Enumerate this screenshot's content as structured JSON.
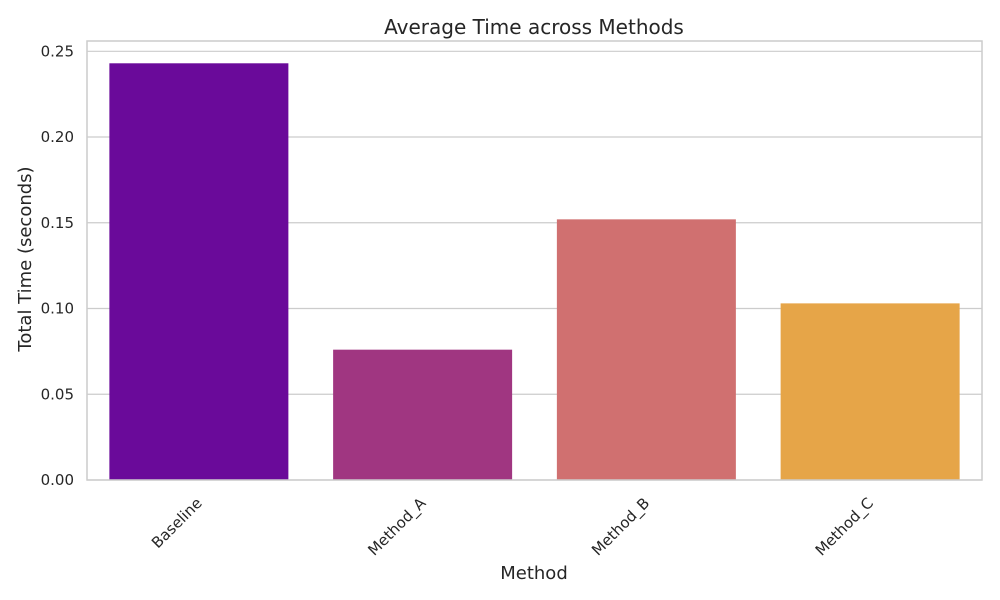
{
  "chart_data": {
    "type": "bar",
    "title": "Average Time across Methods",
    "xlabel": "Method",
    "ylabel": "Total Time (seconds)",
    "categories": [
      "Baseline",
      "Method_A",
      "Method_B",
      "Method_C"
    ],
    "values": [
      0.243,
      0.076,
      0.152,
      0.103
    ],
    "colors": [
      "#6a0a9a",
      "#a03681",
      "#d07070",
      "#e6a548"
    ],
    "ylim": [
      0,
      0.256
    ],
    "yticks": [
      0.0,
      0.05,
      0.1,
      0.15,
      0.2,
      0.25
    ],
    "ytick_labels": [
      "0.00",
      "0.05",
      "0.10",
      "0.15",
      "0.20",
      "0.25"
    ],
    "grid": "horizontal",
    "tick_rotation": 45
  }
}
